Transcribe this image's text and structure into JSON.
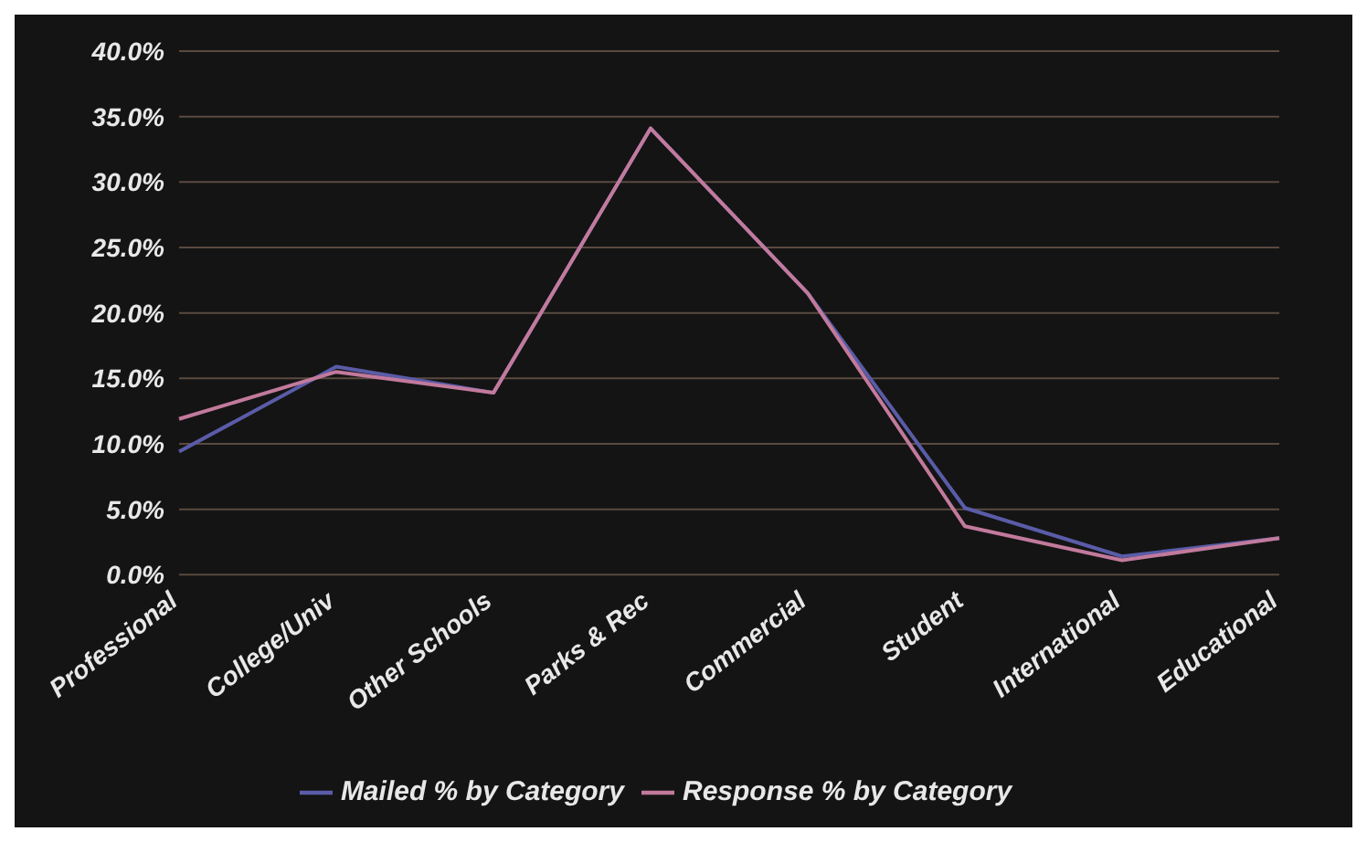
{
  "chart_data": {
    "type": "line",
    "categories": [
      "Professional",
      "College/Univ",
      "Other Schools",
      "Parks & Rec",
      "Commercial",
      "Student",
      "International",
      "Educational"
    ],
    "series": [
      {
        "name": "Mailed % by Category",
        "color": "#5a5ca8",
        "values": [
          9.4,
          15.9,
          13.9,
          34.1,
          21.5,
          5.1,
          1.4,
          2.8
        ]
      },
      {
        "name": "Response % by Category",
        "color": "#c27a9c",
        "values": [
          11.9,
          15.5,
          13.9,
          34.1,
          21.5,
          3.7,
          1.1,
          2.8
        ]
      }
    ],
    "ylim": [
      0,
      40
    ],
    "yticks": [
      {
        "value": 0,
        "label": "0.0%"
      },
      {
        "value": 5,
        "label": "5.0%"
      },
      {
        "value": 10,
        "label": "10.0%"
      },
      {
        "value": 15,
        "label": "15.0%"
      },
      {
        "value": 20,
        "label": "20.0%"
      },
      {
        "value": 25,
        "label": "25.0%"
      },
      {
        "value": 30,
        "label": "30.0%"
      },
      {
        "value": 35,
        "label": "35.0%"
      },
      {
        "value": 40,
        "label": "40.0%"
      }
    ],
    "grid": "y",
    "legend": "bottom",
    "marker": "none",
    "line_style": "solid"
  }
}
